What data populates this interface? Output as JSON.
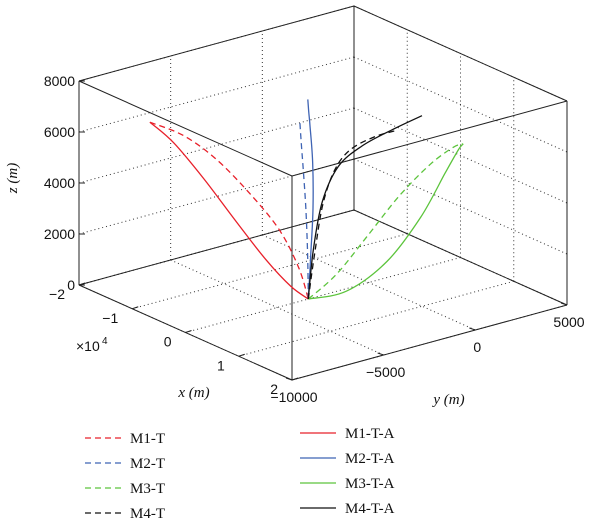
{
  "chart_data": {
    "type": "line",
    "title": "",
    "xlabel": "x (m)",
    "ylabel": "y (m)",
    "zlabel": "z (m)",
    "x_multiplier": "×10^4",
    "xlim": [
      -2,
      2
    ],
    "ylim": [
      -10000,
      5000
    ],
    "zlim": [
      0,
      8000
    ],
    "x_ticks": [
      "−2",
      "−1",
      "0",
      "1",
      "2"
    ],
    "y_ticks": [
      "−10000",
      "−5000",
      "0",
      "5000"
    ],
    "z_ticks": [
      "0",
      "2000",
      "4000",
      "6000",
      "8000"
    ],
    "grid": true,
    "legend_position": "bottom",
    "series": [
      {
        "name": "M1-T",
        "color": "#e8202a",
        "dash": "dashed",
        "points": [
          [
            -1.15,
            -8600,
            6900
          ],
          [
            -0.88,
            -7600,
            6450
          ],
          [
            -0.62,
            -6600,
            5600
          ],
          [
            -0.38,
            -5500,
            4300
          ],
          [
            -0.18,
            -4400,
            2800
          ],
          [
            -0.05,
            -3700,
            1300
          ],
          [
            0,
            -3300,
            0
          ]
        ]
      },
      {
        "name": "M1-T-A",
        "color": "#e8202a",
        "dash": "solid",
        "points": [
          [
            -1.15,
            -8600,
            6900
          ],
          [
            -0.98,
            -7800,
            6100
          ],
          [
            -0.76,
            -6800,
            4700
          ],
          [
            -0.52,
            -5700,
            3000
          ],
          [
            -0.3,
            -4700,
            1500
          ],
          [
            -0.12,
            -3900,
            500
          ],
          [
            0,
            -3300,
            0
          ]
        ]
      },
      {
        "name": "M2-T",
        "color": "#3f64b4",
        "dash": "dashed",
        "points": [
          [
            0,
            -3300,
            0
          ],
          [
            0.02,
            -3400,
            1800
          ],
          [
            0.04,
            -3550,
            3600
          ],
          [
            0.06,
            -3750,
            5200
          ],
          [
            0.07,
            -3900,
            6400
          ],
          [
            0.08,
            -4000,
            7200
          ]
        ]
      },
      {
        "name": "M2-T-A",
        "color": "#3f64b4",
        "dash": "solid",
        "points": [
          [
            0,
            -3300,
            0
          ],
          [
            0.03,
            -3250,
            1800
          ],
          [
            0.07,
            -3250,
            3600
          ],
          [
            0.1,
            -3350,
            5400
          ],
          [
            0.12,
            -3550,
            6900
          ],
          [
            0.13,
            -3650,
            7500
          ],
          [
            0.11,
            -3650,
            8000
          ]
        ]
      },
      {
        "name": "M3-T",
        "color": "#5cc43c",
        "dash": "dashed",
        "points": [
          [
            0,
            -3300,
            0
          ],
          [
            0.22,
            -2400,
            1000
          ],
          [
            0.45,
            -1400,
            2500
          ],
          [
            0.68,
            -300,
            4100
          ],
          [
            0.88,
            800,
            5300
          ],
          [
            1.0,
            1700,
            5900
          ],
          [
            1.05,
            2100,
            6000
          ]
        ]
      },
      {
        "name": "M3-T-A",
        "color": "#5cc43c",
        "dash": "solid",
        "points": [
          [
            0,
            -3300,
            0
          ],
          [
            0.3,
            -2100,
            350
          ],
          [
            0.58,
            -700,
            1500
          ],
          [
            0.8,
            500,
            3200
          ],
          [
            0.95,
            1400,
            4900
          ],
          [
            1.03,
            1900,
            5800
          ],
          [
            1.05,
            2100,
            6000
          ]
        ]
      },
      {
        "name": "M4-T",
        "color": "#111111",
        "dash": "dashed",
        "points": [
          [
            0,
            -3300,
            0
          ],
          [
            0.05,
            -3100,
            1800
          ],
          [
            0.1,
            -2800,
            3700
          ],
          [
            0.15,
            -2300,
            5000
          ],
          [
            0.2,
            -1600,
            5700
          ],
          [
            0.3,
            -600,
            6100
          ],
          [
            0.42,
            300,
            6300
          ]
        ]
      },
      {
        "name": "M4-T-A",
        "color": "#111111",
        "dash": "solid",
        "points": [
          [
            0,
            -3300,
            0
          ],
          [
            0.04,
            -3150,
            1900
          ],
          [
            0.09,
            -2800,
            3800
          ],
          [
            0.15,
            -2100,
            5100
          ],
          [
            0.25,
            -1100,
            5800
          ],
          [
            0.38,
            100,
            6300
          ],
          [
            0.55,
            1300,
            6800
          ]
        ]
      }
    ]
  }
}
